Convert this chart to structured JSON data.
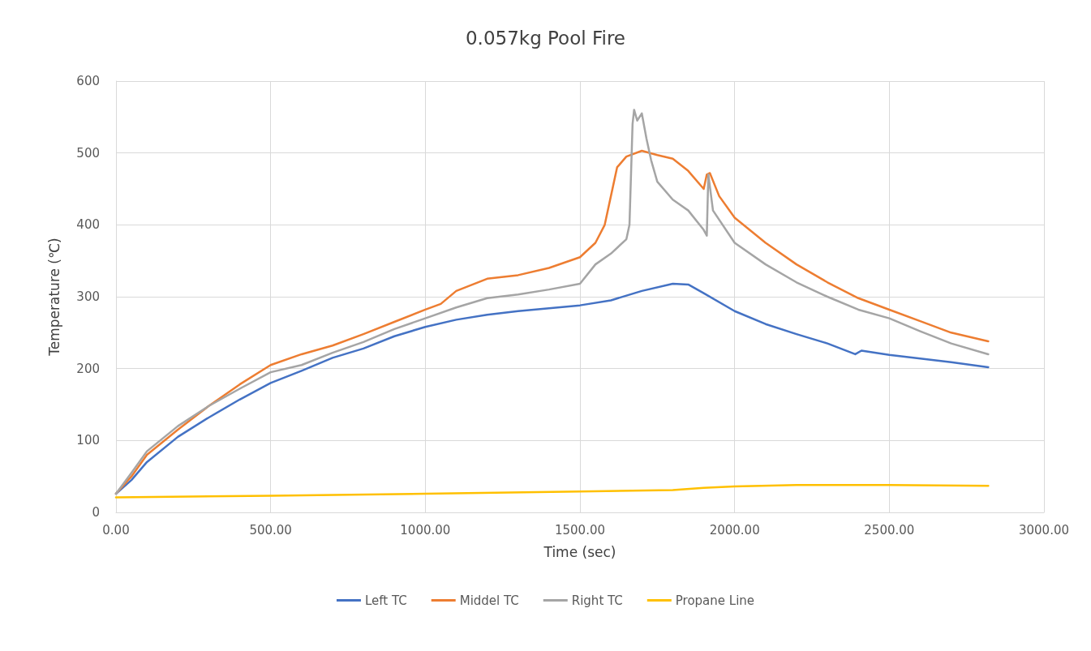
{
  "chart_data": {
    "type": "line",
    "title": "0.057kg Pool Fire",
    "xlabel": "Time (sec)",
    "ylabel": "Temperature (℃)",
    "xlim": [
      0,
      3000
    ],
    "xticks": [
      {
        "value": 0,
        "label": "0.00"
      },
      {
        "value": 500,
        "label": "500.00"
      },
      {
        "value": 1000,
        "label": "1000.00"
      },
      {
        "value": 1500,
        "label": "1500.00"
      },
      {
        "value": 2000,
        "label": "2000.00"
      },
      {
        "value": 2500,
        "label": "2500.00"
      },
      {
        "value": 3000,
        "label": "3000.00"
      }
    ],
    "ylim": [
      0,
      600
    ],
    "yticks": [
      0,
      100,
      200,
      300,
      400,
      500,
      600
    ],
    "grid": true,
    "legend": "bottom",
    "marker": "none",
    "line_style": "solid",
    "series": [
      {
        "name": "Left TC",
        "color": "#4472c4",
        "x": [
          0,
          50,
          100,
          200,
          300,
          400,
          500,
          600,
          700,
          800,
          900,
          1000,
          1100,
          1200,
          1300,
          1400,
          1500,
          1600,
          1700,
          1800,
          1850,
          1900,
          2000,
          2100,
          2200,
          2300,
          2390,
          2410,
          2500,
          2600,
          2700,
          2820
        ],
        "values": [
          26,
          45,
          70,
          105,
          132,
          157,
          180,
          197,
          215,
          228,
          245,
          258,
          268,
          275,
          280,
          284,
          288,
          295,
          308,
          318,
          317,
          305,
          280,
          262,
          248,
          235,
          220,
          225,
          219,
          214,
          209,
          202
        ]
      },
      {
        "name": "Middel TC",
        "color": "#ed7d31",
        "x": [
          0,
          50,
          100,
          200,
          300,
          400,
          500,
          600,
          700,
          800,
          900,
          1000,
          1050,
          1100,
          1200,
          1300,
          1400,
          1500,
          1550,
          1580,
          1600,
          1620,
          1650,
          1700,
          1750,
          1800,
          1850,
          1900,
          1910,
          1920,
          1950,
          2000,
          2100,
          2200,
          2300,
          2400,
          2500,
          2600,
          2700,
          2820
        ],
        "values": [
          26,
          50,
          80,
          115,
          148,
          178,
          205,
          220,
          232,
          248,
          265,
          282,
          290,
          308,
          325,
          330,
          340,
          355,
          375,
          400,
          440,
          480,
          495,
          503,
          497,
          492,
          475,
          450,
          470,
          472,
          440,
          410,
          375,
          345,
          320,
          298,
          282,
          266,
          250,
          238
        ]
      },
      {
        "name": "Right TC",
        "color": "#a5a5a5",
        "x": [
          0,
          50,
          100,
          200,
          300,
          400,
          500,
          600,
          700,
          800,
          900,
          1000,
          1100,
          1200,
          1300,
          1400,
          1500,
          1550,
          1600,
          1650,
          1660,
          1670,
          1675,
          1685,
          1700,
          1715,
          1730,
          1750,
          1800,
          1850,
          1900,
          1910,
          1915,
          1930,
          2000,
          2100,
          2200,
          2300,
          2400,
          2500,
          2600,
          2700,
          2820
        ],
        "values": [
          26,
          55,
          85,
          120,
          148,
          172,
          195,
          205,
          222,
          237,
          255,
          270,
          285,
          298,
          303,
          310,
          318,
          345,
          360,
          380,
          400,
          540,
          560,
          545,
          555,
          520,
          490,
          460,
          435,
          420,
          393,
          385,
          470,
          420,
          375,
          345,
          320,
          300,
          282,
          270,
          252,
          235,
          220
        ]
      },
      {
        "name": "Propane Line",
        "color": "#ffc000",
        "x": [
          0,
          500,
          1000,
          1500,
          1800,
          1900,
          2000,
          2200,
          2500,
          2820
        ],
        "values": [
          21,
          23,
          26,
          29,
          31,
          34,
          36,
          38,
          38,
          37
        ]
      }
    ]
  }
}
